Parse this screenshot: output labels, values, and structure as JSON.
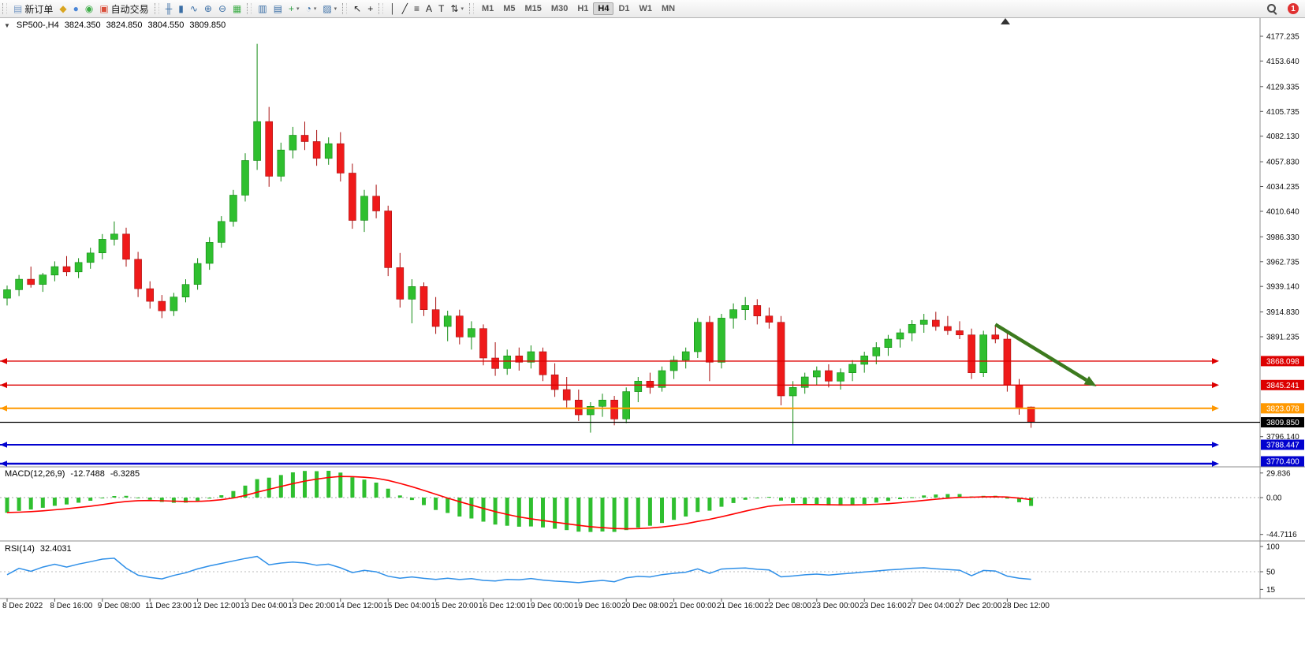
{
  "toolbar": {
    "dropdown_glyph": "▾",
    "notification_count": "1",
    "active_timeframe": "H4",
    "timeframes": [
      "M1",
      "M5",
      "M15",
      "M30",
      "H1",
      "H4",
      "D1",
      "W1",
      "MN"
    ],
    "groups": [
      {
        "name": "trade",
        "items": [
          {
            "name": "new-order-button",
            "icon": "new-order-icon",
            "glyph": "▤",
            "glyph_color": "#7a9cc6",
            "label": "新订单"
          },
          {
            "name": "market-button",
            "icon": "market-icon",
            "glyph": "◆",
            "glyph_color": "#d9a520"
          },
          {
            "name": "signals-button",
            "icon": "signals-icon",
            "glyph": "●",
            "glyph_color": "#4a86d8"
          },
          {
            "name": "community-button",
            "icon": "mql5-community-icon",
            "glyph": "◉",
            "glyph_color": "#3fae49"
          },
          {
            "name": "algo-trading-button",
            "icon": "algo-trading-icon",
            "glyph": "▣",
            "glyph_color": "#d94f3b",
            "label": "自动交易"
          }
        ]
      },
      {
        "name": "chart-tools",
        "items": [
          {
            "name": "bar-chart-button",
            "icon": "bar-chart-icon",
            "glyph": "╫",
            "glyph_color": "#3a6ea5"
          },
          {
            "name": "candlestick-button",
            "icon": "candlestick-icon",
            "glyph": "▮",
            "glyph_color": "#3a6ea5"
          },
          {
            "name": "line-chart-button",
            "icon": "line-chart-icon",
            "glyph": "∿",
            "glyph_color": "#3a6ea5"
          },
          {
            "name": "zoom-in-button",
            "icon": "zoom-in-icon",
            "glyph": "⊕",
            "glyph_color": "#3a6ea5"
          },
          {
            "name": "zoom-out-button",
            "icon": "zoom-out-icon",
            "glyph": "⊖",
            "glyph_color": "#3a6ea5"
          },
          {
            "name": "tile-windows-button",
            "icon": "tile-windows-icon",
            "glyph": "▦",
            "glyph_color": "#3fae49"
          }
        ]
      },
      {
        "name": "chart-controls",
        "items": [
          {
            "name": "auto-scroll-button",
            "icon": "auto-scroll-icon",
            "glyph": "▥",
            "glyph_color": "#3a6ea5"
          },
          {
            "name": "chart-shift-button",
            "icon": "chart-shift-icon",
            "glyph": "▤",
            "glyph_color": "#3a6ea5"
          },
          {
            "name": "add-indicator-button",
            "icon": "add-indicator-icon",
            "glyph": "+",
            "glyph_color": "#2f9e44",
            "dropdown": true
          },
          {
            "name": "periods-button",
            "icon": "clock-icon",
            "glyph": "◔",
            "glyph_color": "#3a6ea5",
            "dropdown": true
          },
          {
            "name": "templates-button",
            "icon": "template-icon",
            "glyph": "▨",
            "glyph_color": "#3a6ea5",
            "dropdown": true
          }
        ]
      },
      {
        "name": "pointer",
        "items": [
          {
            "name": "cursor-button",
            "icon": "cursor-icon",
            "glyph": "↖",
            "glyph_color": "#222"
          },
          {
            "name": "crosshair-button",
            "icon": "crosshair-icon",
            "glyph": "+",
            "glyph_color": "#222"
          }
        ]
      },
      {
        "name": "objects",
        "items": [
          {
            "name": "vertical-line-button",
            "icon": "vertical-line-icon",
            "glyph": "│",
            "glyph_color": "#222"
          },
          {
            "name": "trendline-button",
            "icon": "trendline-icon",
            "glyph": "╱",
            "glyph_color": "#222"
          },
          {
            "name": "fibonacci-button",
            "icon": "fibonacci-icon",
            "glyph": "≡",
            "glyph_color": "#222"
          },
          {
            "name": "text-button",
            "icon": "text-icon",
            "glyph": "A",
            "glyph_color": "#222"
          },
          {
            "name": "label-button",
            "icon": "label-icon",
            "glyph": "T",
            "glyph_color": "#222"
          },
          {
            "name": "arrows-button",
            "icon": "arrow-objects-icon",
            "glyph": "⇅",
            "glyph_color": "#222",
            "dropdown": true
          }
        ]
      }
    ]
  },
  "chart": {
    "symbol_period": "SP500-,H4",
    "open": "3824.350",
    "high": "3824.850",
    "low": "3804.550",
    "close": "3809.850",
    "collapse_glyph": "▼"
  },
  "chart_data": {
    "type": "candlestick",
    "symbol": "SP500-",
    "timeframe": "H4",
    "price_range": {
      "top": 4181.0,
      "bottom": 3769.0
    },
    "colors": {
      "up": "#2fbf2f",
      "up_stroke": "#118a11",
      "down": "#ef1a1a",
      "down_stroke": "#a80f0f",
      "macd_hist": "#2fbf2f",
      "macd_signal": "#ff0000",
      "rsi_line": "#2e8fe8",
      "annotation": "#3c7a1e",
      "level_red": "#dd0000",
      "level_orange": "#ff9800",
      "level_blue": "#0202cf",
      "price_line": "#000000"
    },
    "price_axis_labels": [
      "4177.235",
      "4153.640",
      "4129.335",
      "4105.735",
      "4082.130",
      "4057.830",
      "4034.235",
      "4010.640",
      "3986.330",
      "3962.735",
      "3939.140",
      "3914.830",
      "3891.235",
      "3796.140"
    ],
    "levels": [
      {
        "price": 3868.098,
        "label": "3868.098",
        "color": "#dd0000",
        "width": 1.4,
        "arrows": true
      },
      {
        "price": 3845.241,
        "label": "3845.241",
        "color": "#dd0000",
        "width": 1.4,
        "arrows": true
      },
      {
        "price": 3823.078,
        "label": "3823.078",
        "color": "#ff9800",
        "width": 2,
        "arrows": true
      },
      {
        "price": 3809.85,
        "label": "3809.850",
        "color": "#000000",
        "width": 1.2,
        "arrows": false
      },
      {
        "price": 3788.447,
        "label": "3788.447",
        "color": "#0202cf",
        "width": 2,
        "arrows": true
      },
      {
        "price": 3770.4,
        "label": "3770.400",
        "color": "#0202cf",
        "width": 2.4,
        "arrows": true
      }
    ],
    "candles": [
      [
        3928,
        3940,
        3921,
        3936
      ],
      [
        3936,
        3950,
        3930,
        3946
      ],
      [
        3946,
        3958,
        3938,
        3941
      ],
      [
        3941,
        3952,
        3934,
        3950
      ],
      [
        3950,
        3963,
        3944,
        3958
      ],
      [
        3958,
        3968,
        3949,
        3953
      ],
      [
        3953,
        3966,
        3947,
        3962
      ],
      [
        3962,
        3976,
        3956,
        3971
      ],
      [
        3971,
        3989,
        3965,
        3984
      ],
      [
        3984,
        4001,
        3978,
        3989
      ],
      [
        3989,
        3995,
        3958,
        3965
      ],
      [
        3965,
        3972,
        3929,
        3937
      ],
      [
        3937,
        3944,
        3918,
        3925
      ],
      [
        3925,
        3931,
        3909,
        3916
      ],
      [
        3916,
        3933,
        3911,
        3929
      ],
      [
        3929,
        3946,
        3924,
        3941
      ],
      [
        3941,
        3966,
        3936,
        3961
      ],
      [
        3961,
        3986,
        3955,
        3981
      ],
      [
        3981,
        4006,
        3976,
        4001
      ],
      [
        4001,
        4031,
        3996,
        4026
      ],
      [
        4026,
        4066,
        4020,
        4059
      ],
      [
        4059,
        4170,
        4050,
        4096
      ],
      [
        4096,
        4110,
        4034,
        4044
      ],
      [
        4044,
        4076,
        4039,
        4069
      ],
      [
        4069,
        4091,
        4061,
        4083
      ],
      [
        4083,
        4096,
        4069,
        4077
      ],
      [
        4077,
        4088,
        4054,
        4061
      ],
      [
        4061,
        4081,
        4055,
        4075
      ],
      [
        4075,
        4086,
        4039,
        4047
      ],
      [
        4047,
        4056,
        3994,
        4002
      ],
      [
        4002,
        4031,
        3991,
        4025
      ],
      [
        4025,
        4036,
        4004,
        4011
      ],
      [
        4011,
        4016,
        3949,
        3957
      ],
      [
        3957,
        3971,
        3919,
        3927
      ],
      [
        3927,
        3946,
        3904,
        3939
      ],
      [
        3939,
        3943,
        3911,
        3917
      ],
      [
        3917,
        3929,
        3894,
        3901
      ],
      [
        3901,
        3916,
        3887,
        3911
      ],
      [
        3911,
        3917,
        3884,
        3891
      ],
      [
        3891,
        3906,
        3879,
        3899
      ],
      [
        3899,
        3903,
        3864,
        3871
      ],
      [
        3871,
        3886,
        3854,
        3861
      ],
      [
        3861,
        3879,
        3855,
        3873
      ],
      [
        3873,
        3881,
        3859,
        3867
      ],
      [
        3867,
        3883,
        3861,
        3877
      ],
      [
        3877,
        3881,
        3849,
        3855
      ],
      [
        3855,
        3866,
        3834,
        3841
      ],
      [
        3841,
        3853,
        3824,
        3831
      ],
      [
        3831,
        3841,
        3811,
        3817
      ],
      [
        3817,
        3829,
        3800,
        3825
      ],
      [
        3825,
        3837,
        3815,
        3831
      ],
      [
        3831,
        3835,
        3807,
        3813
      ],
      [
        3813,
        3843,
        3809,
        3839
      ],
      [
        3839,
        3853,
        3829,
        3849
      ],
      [
        3849,
        3857,
        3837,
        3843
      ],
      [
        3843,
        3863,
        3839,
        3859
      ],
      [
        3859,
        3873,
        3851,
        3869
      ],
      [
        3869,
        3881,
        3861,
        3877
      ],
      [
        3877,
        3909,
        3871,
        3905
      ],
      [
        3905,
        3911,
        3849,
        3867
      ],
      [
        3867,
        3913,
        3861,
        3909
      ],
      [
        3909,
        3923,
        3899,
        3917
      ],
      [
        3917,
        3929,
        3907,
        3921
      ],
      [
        3921,
        3927,
        3903,
        3911
      ],
      [
        3911,
        3919,
        3899,
        3905
      ],
      [
        3905,
        3911,
        3826,
        3835
      ],
      [
        3835,
        3849,
        3789,
        3843
      ],
      [
        3843,
        3857,
        3837,
        3853
      ],
      [
        3853,
        3863,
        3845,
        3859
      ],
      [
        3859,
        3865,
        3843,
        3849
      ],
      [
        3849,
        3861,
        3841,
        3857
      ],
      [
        3857,
        3869,
        3849,
        3865
      ],
      [
        3865,
        3877,
        3857,
        3873
      ],
      [
        3873,
        3886,
        3865,
        3881
      ],
      [
        3881,
        3893,
        3873,
        3889
      ],
      [
        3889,
        3899,
        3881,
        3895
      ],
      [
        3895,
        3907,
        3887,
        3903
      ],
      [
        3903,
        3913,
        3895,
        3907
      ],
      [
        3907,
        3915,
        3897,
        3901
      ],
      [
        3901,
        3911,
        3893,
        3897
      ],
      [
        3897,
        3906,
        3889,
        3893
      ],
      [
        3893,
        3899,
        3851,
        3857
      ],
      [
        3857,
        3897,
        3853,
        3893
      ],
      [
        3893,
        3901,
        3885,
        3889
      ],
      [
        3889,
        3895,
        3839,
        3845
      ],
      [
        3845,
        3851,
        3817,
        3823
      ],
      [
        3824.35,
        3824.85,
        3804.55,
        3809.85
      ]
    ],
    "time_axis": {
      "indices": [
        0,
        4,
        8,
        12,
        16,
        20,
        24,
        28,
        32,
        36,
        40,
        44,
        48,
        52,
        56,
        60,
        64,
        68,
        72,
        76,
        80,
        84
      ],
      "labels": [
        "8 Dec 2022",
        "8 Dec 16:00",
        "9 Dec 08:00",
        "11 Dec 23:00",
        "12 Dec 12:00",
        "13 Dec 04:00",
        "13 Dec 20:00",
        "14 Dec 12:00",
        "15 Dec 04:00",
        "15 Dec 20:00",
        "16 Dec 12:00",
        "19 Dec 00:00",
        "19 Dec 16:00",
        "20 Dec 08:00",
        "21 Dec 00:00",
        "21 Dec 16:00",
        "22 Dec 08:00",
        "23 Dec 00:00",
        "23 Dec 16:00",
        "27 Dec 04:00",
        "27 Dec 20:00",
        "28 Dec 12:00"
      ]
    },
    "macd": {
      "name": "MACD(12,26,9)",
      "value": "-12.7488",
      "signal_value": "-6.3285",
      "params": [
        12,
        26,
        9
      ],
      "axis": [
        {
          "label": "29.836",
          "value": 29.836
        },
        {
          "label": "0.00",
          "value": 0
        },
        {
          "label": "-44.7116",
          "value": -44.7116
        }
      ]
    },
    "rsi": {
      "name": "RSI(14)",
      "value": "32.4031",
      "period": 14,
      "axis": [
        {
          "label": "100",
          "value": 100
        },
        {
          "label": "50",
          "value": 50
        },
        {
          "label": "15",
          "value": 15
        }
      ]
    },
    "annotation_arrow": {
      "from_index": 83,
      "from_price": 3903,
      "to_index": 91.5,
      "to_price": 3844,
      "width": 4.5
    }
  }
}
